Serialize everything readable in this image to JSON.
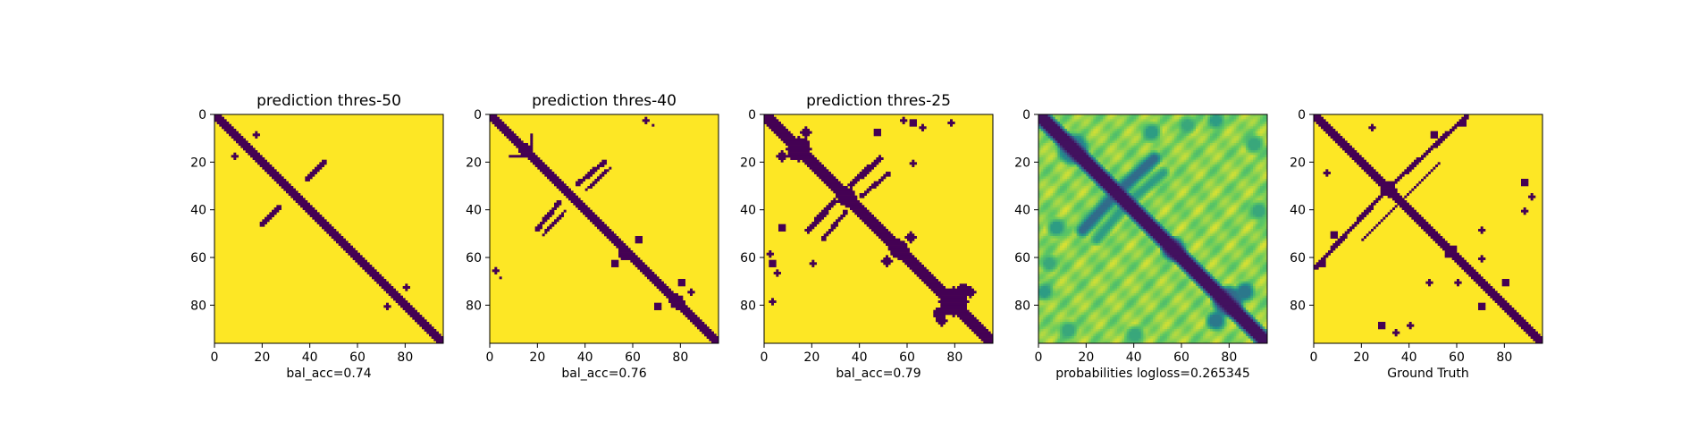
{
  "chart_data": [
    {
      "type": "heatmap",
      "title": "prediction thres-50",
      "xlabel": "bal_acc=0.74",
      "xticks": [
        0,
        20,
        40,
        60,
        80
      ],
      "yticks": [
        0,
        20,
        40,
        60,
        80
      ],
      "xlim": [
        0,
        96
      ],
      "ylim": [
        0,
        96
      ],
      "size": 96,
      "colormap": "viridis-binary",
      "background_value": 1,
      "diagonal": {
        "value": 0,
        "width": 3.5
      },
      "features": [
        {
          "kind": "blob",
          "x": 17,
          "y": 17,
          "r": 1.2
        },
        {
          "kind": "blob",
          "x": 17,
          "y": 17,
          "r": 1.2
        },
        {
          "kind": "blob",
          "x": 8,
          "y": 17,
          "r": 1.2
        },
        {
          "kind": "blob",
          "x": 17,
          "y": 8,
          "r": 1.2
        },
        {
          "kind": "band",
          "x1": 38,
          "y1": 27,
          "x2": 46,
          "y2": 19,
          "w": 1.6
        },
        {
          "kind": "band",
          "x1": 27,
          "y1": 38,
          "x2": 19,
          "y2": 46,
          "w": 1.6
        },
        {
          "kind": "blob",
          "x": 80,
          "y": 72,
          "r": 1.3
        },
        {
          "kind": "blob",
          "x": 72,
          "y": 80,
          "r": 1.3
        },
        {
          "kind": "blob",
          "x": 76,
          "y": 77,
          "r": 1.0
        }
      ]
    },
    {
      "type": "heatmap",
      "title": "prediction thres-40",
      "xlabel": "bal_acc=0.76",
      "xticks": [
        0,
        20,
        40,
        60,
        80
      ],
      "yticks": [
        0,
        20,
        40,
        60,
        80
      ],
      "xlim": [
        0,
        96
      ],
      "ylim": [
        0,
        96
      ],
      "size": 96,
      "colormap": "viridis-binary",
      "background_value": 1,
      "diagonal": {
        "value": 0,
        "width": 4.2
      },
      "features": [
        {
          "kind": "band",
          "x1": 17,
          "y1": 17,
          "x2": 8,
          "y2": 17,
          "w": 1.6
        },
        {
          "kind": "band",
          "x1": 17,
          "y1": 17,
          "x2": 17,
          "y2": 8,
          "w": 1.6
        },
        {
          "kind": "blob",
          "x": 14,
          "y": 14,
          "r": 2.4
        },
        {
          "kind": "band",
          "x1": 36,
          "y1": 29,
          "x2": 48,
          "y2": 19,
          "w": 1.8
        },
        {
          "kind": "band",
          "x1": 29,
          "y1": 36,
          "x2": 19,
          "y2": 48,
          "w": 1.8
        },
        {
          "kind": "band",
          "x1": 40,
          "y1": 31,
          "x2": 50,
          "y2": 22,
          "w": 1.2
        },
        {
          "kind": "band",
          "x1": 31,
          "y1": 40,
          "x2": 22,
          "y2": 50,
          "w": 1.2
        },
        {
          "kind": "blob",
          "x": 56,
          "y": 58,
          "r": 2.4
        },
        {
          "kind": "blob",
          "x": 62,
          "y": 52,
          "r": 1.5
        },
        {
          "kind": "blob",
          "x": 52,
          "y": 62,
          "r": 1.5
        },
        {
          "kind": "blob",
          "x": 78,
          "y": 78,
          "r": 3.0
        },
        {
          "kind": "blob",
          "x": 80,
          "y": 70,
          "r": 1.5
        },
        {
          "kind": "blob",
          "x": 70,
          "y": 80,
          "r": 1.5
        },
        {
          "kind": "blob",
          "x": 84,
          "y": 74,
          "r": 1.2
        },
        {
          "kind": "blob",
          "x": 2,
          "y": 65,
          "r": 1.2
        },
        {
          "kind": "blob",
          "x": 4,
          "y": 68,
          "r": 0.9
        },
        {
          "kind": "blob",
          "x": 65,
          "y": 2,
          "r": 1.2
        },
        {
          "kind": "blob",
          "x": 68,
          "y": 4,
          "r": 0.9
        }
      ]
    },
    {
      "type": "heatmap",
      "title": "prediction thres-25",
      "xlabel": "bal_acc=0.79",
      "xticks": [
        0,
        20,
        40,
        60,
        80
      ],
      "yticks": [
        0,
        20,
        40,
        60,
        80
      ],
      "xlim": [
        0,
        96
      ],
      "ylim": [
        0,
        96
      ],
      "size": 96,
      "colormap": "viridis-binary",
      "background_value": 1,
      "diagonal": {
        "value": 0,
        "width": 5.0
      },
      "features": [
        {
          "kind": "blob",
          "x": 14,
          "y": 14,
          "r": 5.0
        },
        {
          "kind": "blob",
          "x": 7,
          "y": 17,
          "r": 2.0
        },
        {
          "kind": "blob",
          "x": 17,
          "y": 7,
          "r": 2.0
        },
        {
          "kind": "blob",
          "x": 34,
          "y": 34,
          "r": 4.0
        },
        {
          "kind": "band",
          "x1": 36,
          "y1": 29,
          "x2": 48,
          "y2": 18,
          "w": 2.4
        },
        {
          "kind": "band",
          "x1": 29,
          "y1": 36,
          "x2": 18,
          "y2": 48,
          "w": 2.4
        },
        {
          "kind": "band",
          "x1": 40,
          "y1": 34,
          "x2": 52,
          "y2": 24,
          "w": 1.6
        },
        {
          "kind": "band",
          "x1": 34,
          "y1": 40,
          "x2": 24,
          "y2": 52,
          "w": 1.6
        },
        {
          "kind": "blob",
          "x": 56,
          "y": 56,
          "r": 4.0
        },
        {
          "kind": "blob",
          "x": 51,
          "y": 61,
          "r": 2.0
        },
        {
          "kind": "blob",
          "x": 61,
          "y": 51,
          "r": 2.0
        },
        {
          "kind": "blob",
          "x": 79,
          "y": 78,
          "r": 6.0
        },
        {
          "kind": "blob",
          "x": 73,
          "y": 83,
          "r": 2.4
        },
        {
          "kind": "blob",
          "x": 83,
          "y": 73,
          "r": 2.4
        },
        {
          "kind": "blob",
          "x": 86,
          "y": 74,
          "r": 2.0
        },
        {
          "kind": "blob",
          "x": 74,
          "y": 86,
          "r": 2.0
        },
        {
          "kind": "blob",
          "x": 47,
          "y": 7,
          "r": 1.5
        },
        {
          "kind": "blob",
          "x": 7,
          "y": 47,
          "r": 1.5
        },
        {
          "kind": "blob",
          "x": 3,
          "y": 62,
          "r": 1.6
        },
        {
          "kind": "blob",
          "x": 5,
          "y": 66,
          "r": 1.4
        },
        {
          "kind": "blob",
          "x": 3,
          "y": 78,
          "r": 1.2
        },
        {
          "kind": "blob",
          "x": 62,
          "y": 3,
          "r": 1.6
        },
        {
          "kind": "blob",
          "x": 66,
          "y": 5,
          "r": 1.4
        },
        {
          "kind": "blob",
          "x": 78,
          "y": 3,
          "r": 1.2
        },
        {
          "kind": "blob",
          "x": 20,
          "y": 62,
          "r": 1.1
        },
        {
          "kind": "blob",
          "x": 62,
          "y": 20,
          "r": 1.1
        },
        {
          "kind": "blob",
          "x": 58,
          "y": 2,
          "r": 1.0
        },
        {
          "kind": "blob",
          "x": 2,
          "y": 58,
          "r": 1.0
        }
      ]
    },
    {
      "type": "heatmap",
      "title": "",
      "xlabel": "probabilities logloss=0.265345",
      "xticks": [
        0,
        20,
        40,
        60,
        80
      ],
      "yticks": [
        0,
        20,
        40,
        60,
        80
      ],
      "xlim": [
        0,
        96
      ],
      "ylim": [
        0,
        96
      ],
      "size": 96,
      "colormap": "viridis-continuous",
      "background_value": 0.9,
      "diagonal": {
        "value": 0.05,
        "width": 4.5
      },
      "features": [
        {
          "kind": "blob",
          "x": 14,
          "y": 14,
          "r": 5.0,
          "v": 0.45
        },
        {
          "kind": "band",
          "x1": 36,
          "y1": 29,
          "x2": 48,
          "y2": 18,
          "w": 2.4,
          "v": 0.35
        },
        {
          "kind": "band",
          "x1": 29,
          "y1": 36,
          "x2": 18,
          "y2": 48,
          "w": 2.4,
          "v": 0.35
        },
        {
          "kind": "band",
          "x1": 40,
          "y1": 34,
          "x2": 52,
          "y2": 24,
          "w": 1.6,
          "v": 0.55
        },
        {
          "kind": "band",
          "x1": 34,
          "y1": 40,
          "x2": 24,
          "y2": 52,
          "w": 1.6,
          "v": 0.55
        },
        {
          "kind": "blob",
          "x": 56,
          "y": 56,
          "r": 3.5,
          "v": 0.3
        },
        {
          "kind": "blob",
          "x": 79,
          "y": 78,
          "r": 5.0,
          "v": 0.35
        },
        {
          "kind": "blob",
          "x": 74,
          "y": 86,
          "r": 2.4,
          "v": 0.4
        },
        {
          "kind": "blob",
          "x": 86,
          "y": 74,
          "r": 2.4,
          "v": 0.4
        },
        {
          "kind": "blob",
          "x": 7,
          "y": 47,
          "r": 2.2,
          "v": 0.55
        },
        {
          "kind": "blob",
          "x": 47,
          "y": 7,
          "r": 2.2,
          "v": 0.55
        },
        {
          "kind": "blob",
          "x": 62,
          "y": 4,
          "r": 2.0,
          "v": 0.6
        },
        {
          "kind": "blob",
          "x": 4,
          "y": 62,
          "r": 2.0,
          "v": 0.6
        },
        {
          "kind": "blob",
          "x": 74,
          "y": 2,
          "r": 2.0,
          "v": 0.55
        },
        {
          "kind": "blob",
          "x": 2,
          "y": 74,
          "r": 2.0,
          "v": 0.55
        },
        {
          "kind": "blob",
          "x": 92,
          "y": 40,
          "r": 2.2,
          "v": 0.6
        },
        {
          "kind": "blob",
          "x": 40,
          "y": 92,
          "r": 2.2,
          "v": 0.6
        },
        {
          "kind": "blob",
          "x": 90,
          "y": 12,
          "r": 2.2,
          "v": 0.6
        },
        {
          "kind": "blob",
          "x": 12,
          "y": 90,
          "r": 2.2,
          "v": 0.6
        }
      ]
    },
    {
      "type": "heatmap",
      "title": "",
      "xlabel": "Ground Truth",
      "xticks": [
        0,
        20,
        40,
        60,
        80
      ],
      "yticks": [
        0,
        20,
        40,
        60,
        80
      ],
      "xlim": [
        0,
        96
      ],
      "ylim": [
        0,
        96
      ],
      "size": 96,
      "colormap": "viridis-binary",
      "background_value": 1,
      "diagonal": {
        "value": 0,
        "width": 3.5
      },
      "features": [
        {
          "kind": "band",
          "x1": 30,
          "y1": 31,
          "x2": 64,
          "y2": 0,
          "w": 1.8
        },
        {
          "kind": "band",
          "x1": 31,
          "y1": 30,
          "x2": 0,
          "y2": 64,
          "w": 1.8
        },
        {
          "kind": "blob",
          "x": 31,
          "y": 31,
          "r": 3.0
        },
        {
          "kind": "band",
          "x1": 36,
          "y1": 36,
          "x2": 52,
          "y2": 20,
          "w": 1.2
        },
        {
          "kind": "band",
          "x1": 36,
          "y1": 36,
          "x2": 20,
          "y2": 52,
          "w": 1.2
        },
        {
          "kind": "blob",
          "x": 14,
          "y": 14,
          "r": 2.2
        },
        {
          "kind": "blob",
          "x": 5,
          "y": 24,
          "r": 1.2
        },
        {
          "kind": "blob",
          "x": 24,
          "y": 5,
          "r": 1.2
        },
        {
          "kind": "blob",
          "x": 8,
          "y": 50,
          "r": 1.6
        },
        {
          "kind": "blob",
          "x": 50,
          "y": 8,
          "r": 1.6
        },
        {
          "kind": "blob",
          "x": 3,
          "y": 62,
          "r": 1.7
        },
        {
          "kind": "blob",
          "x": 62,
          "y": 3,
          "r": 1.7
        },
        {
          "kind": "blob",
          "x": 70,
          "y": 80,
          "r": 1.5
        },
        {
          "kind": "blob",
          "x": 80,
          "y": 70,
          "r": 1.5
        },
        {
          "kind": "blob",
          "x": 58,
          "y": 56,
          "r": 1.5
        },
        {
          "kind": "blob",
          "x": 56,
          "y": 58,
          "r": 1.5
        },
        {
          "kind": "blob",
          "x": 28,
          "y": 88,
          "r": 1.6
        },
        {
          "kind": "blob",
          "x": 88,
          "y": 28,
          "r": 1.6
        },
        {
          "kind": "blob",
          "x": 40,
          "y": 88,
          "r": 1.3
        },
        {
          "kind": "blob",
          "x": 88,
          "y": 40,
          "r": 1.3
        },
        {
          "kind": "blob",
          "x": 91,
          "y": 34,
          "r": 1.0
        },
        {
          "kind": "blob",
          "x": 34,
          "y": 91,
          "r": 1.0
        },
        {
          "kind": "blob",
          "x": 70,
          "y": 60,
          "r": 1.0
        },
        {
          "kind": "blob",
          "x": 60,
          "y": 70,
          "r": 1.0
        },
        {
          "kind": "blob",
          "x": 48,
          "y": 70,
          "r": 1.0
        },
        {
          "kind": "blob",
          "x": 70,
          "y": 48,
          "r": 1.0
        }
      ]
    }
  ]
}
